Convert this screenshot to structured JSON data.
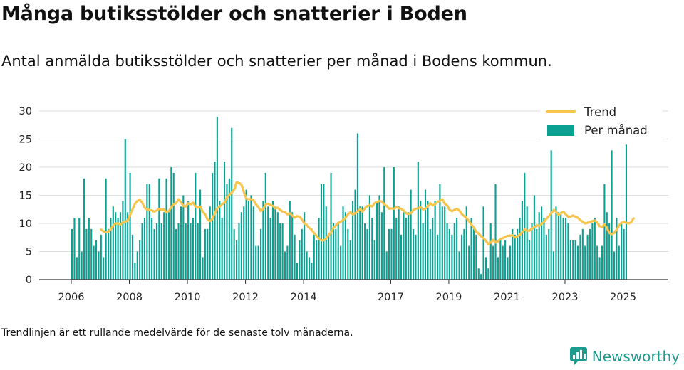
{
  "title": "Många butiksstölder och snatterier i Boden",
  "subtitle": "Antal anmälda butiksstölder och snatterier per månad i Bodens kommun.",
  "footnote": "Trendlinjen är ett rullande medelvärde för de senaste tolv månaderna.",
  "brand": "Newsworthy",
  "colors": {
    "bars": "#0aa092",
    "trend": "#f7c54e",
    "grid": "#dddddd",
    "axis": "#333333",
    "brand": "#1d9b8d"
  },
  "chart_data": {
    "type": "bar",
    "x_unit": "month",
    "start_month": "2006-01",
    "ylim": [
      0,
      30
    ],
    "yticks": [
      0,
      5,
      10,
      15,
      20,
      25,
      30
    ],
    "xtick_years": [
      "2006",
      "2008",
      "2010",
      "2012",
      "2014",
      "2017",
      "2019",
      "2021",
      "2023",
      "2025"
    ],
    "grid": true,
    "legend_position": "top-right",
    "series": [
      {
        "name": "Per månad",
        "kind": "bar",
        "values": [
          9,
          11,
          4,
          11,
          5,
          18,
          9,
          11,
          9,
          6,
          7,
          5,
          8,
          4,
          18,
          9,
          11,
          13,
          12,
          11,
          12,
          14,
          25,
          12,
          19,
          8,
          3,
          5,
          7,
          10,
          11,
          17,
          17,
          11,
          9,
          10,
          18,
          10,
          12,
          18,
          12,
          20,
          19,
          9,
          10,
          13,
          15,
          10,
          14,
          10,
          11,
          19,
          10,
          16,
          4,
          9,
          9,
          13,
          19,
          21,
          29,
          14,
          11,
          21,
          17,
          18,
          27,
          9,
          7,
          10,
          12,
          13,
          16,
          14,
          15,
          13,
          6,
          6,
          9,
          14,
          19,
          13,
          11,
          14,
          13,
          12,
          10,
          10,
          5,
          6,
          14,
          12,
          8,
          3,
          7,
          9,
          12,
          5,
          4,
          3,
          8,
          7,
          11,
          17,
          17,
          13,
          8,
          19,
          10,
          9,
          10,
          6,
          13,
          12,
          9,
          7,
          14,
          16,
          26,
          13,
          13,
          10,
          9,
          15,
          11,
          7,
          14,
          15,
          12,
          20,
          5,
          9,
          9,
          20,
          11,
          13,
          8,
          12,
          11,
          12,
          16,
          9,
          8,
          21,
          14,
          10,
          16,
          14,
          9,
          11,
          14,
          8,
          17,
          13,
          13,
          10,
          9,
          8,
          10,
          11,
          5,
          8,
          9,
          13,
          6,
          11,
          9,
          8,
          2,
          1,
          13,
          4,
          2,
          10,
          6,
          17,
          4,
          7,
          6,
          7,
          4,
          6,
          9,
          8,
          9,
          11,
          14,
          19,
          13,
          7,
          10,
          15,
          9,
          12,
          13,
          11,
          8,
          9,
          23,
          5,
          13,
          12,
          12,
          11,
          11,
          10,
          7,
          7,
          7,
          6,
          8,
          9,
          6,
          8,
          9,
          10,
          11,
          6,
          4,
          6,
          17,
          12,
          10,
          23,
          5,
          11,
          6,
          10,
          9,
          24
        ]
      },
      {
        "name": "Trend",
        "kind": "line",
        "start_index": 12,
        "values": [
          8.9,
          8.6,
          8.4,
          8.5,
          9.0,
          9.6,
          10.0,
          10.0,
          9.8,
          10.2,
          10.3,
          10.5,
          11.5,
          12.5,
          13.5,
          14.0,
          14.2,
          13.7,
          12.8,
          12.5,
          12.4,
          12.3,
          12.1,
          12.3,
          12.6,
          12.4,
          12.5,
          12.0,
          12.2,
          12.9,
          13.4,
          13.6,
          14.3,
          13.8,
          13.1,
          13.0,
          13.6,
          13.4,
          13.7,
          13.0,
          12.8,
          13.0,
          12.1,
          11.6,
          10.7,
          10.4,
          10.8,
          11.8,
          12.7,
          13.0,
          13.4,
          13.7,
          14.6,
          15.1,
          15.5,
          16.0,
          17.3,
          17.2,
          16.9,
          15.6,
          14.4,
          14.3,
          14.3,
          14.1,
          13.4,
          12.9,
          12.2,
          12.6,
          13.4,
          13.5,
          13.3,
          13.1,
          12.7,
          12.8,
          12.4,
          12.1,
          12.0,
          11.6,
          11.8,
          11.4,
          11.0,
          11.3,
          11.2,
          10.7,
          10.0,
          9.7,
          9.2,
          8.9,
          8.3,
          7.8,
          7.3,
          7.0,
          7.0,
          7.3,
          7.9,
          8.4,
          9.2,
          9.6,
          10.1,
          10.3,
          10.6,
          11.0,
          11.6,
          12.0,
          11.6,
          11.8,
          12.1,
          12.6,
          12.1,
          12.7,
          13.1,
          13.2,
          13.0,
          13.6,
          13.8,
          14.0,
          13.9,
          13.4,
          13.1,
          12.6,
          12.7,
          12.6,
          12.9,
          12.7,
          12.6,
          12.3,
          11.8,
          11.7,
          11.8,
          12.4,
          12.6,
          12.7,
          12.9,
          12.5,
          12.6,
          13.0,
          13.6,
          13.2,
          13.4,
          13.8,
          14.0,
          14.3,
          13.5,
          13.2,
          12.4,
          12.2,
          12.4,
          12.6,
          12.3,
          11.7,
          11.3,
          11.0,
          10.4,
          9.8,
          9.3,
          8.5,
          8.2,
          7.7,
          7.4,
          6.9,
          6.3,
          6.6,
          7.1,
          6.6,
          6.8,
          7.2,
          7.4,
          7.6,
          7.8,
          7.8,
          7.9,
          7.5,
          7.7,
          8.0,
          8.4,
          8.9,
          8.7,
          8.7,
          9.1,
          9.3,
          9.7,
          9.5,
          9.9,
          10.3,
          10.8,
          11.3,
          11.8,
          12.4,
          12.1,
          11.5,
          11.8,
          12.1,
          11.6,
          11.2,
          11.2,
          11.4,
          11.2,
          11.0,
          10.6,
          10.3,
          10.0,
          10.1,
          10.3,
          10.4,
          10.5,
          10.2,
          9.5,
          9.4,
          9.8,
          9.2,
          8.3,
          8.1,
          8.3,
          8.9,
          9.6,
          10.1,
          10.3,
          10.1,
          10.0,
          10.2,
          10.9
        ]
      }
    ]
  }
}
